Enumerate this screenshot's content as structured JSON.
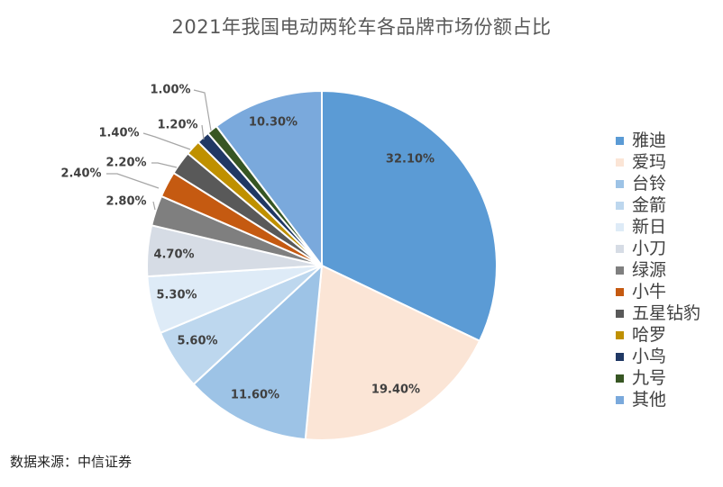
{
  "chart_data": {
    "type": "pie",
    "title": "2021年我国电动两轮车各品牌市场份额占比",
    "categories": [
      "雅迪",
      "爱玛",
      "台铃",
      "金箭",
      "新日",
      "小刀",
      "绿源",
      "小牛",
      "五星钻豹",
      "哈罗",
      "小鸟",
      "九号",
      "其他"
    ],
    "values": [
      32.1,
      19.4,
      11.6,
      5.6,
      5.3,
      4.7,
      2.8,
      2.4,
      2.2,
      1.4,
      1.2,
      1.0,
      10.3
    ],
    "value_labels": [
      "32.10%",
      "19.40%",
      "11.60%",
      "5.60%",
      "5.30%",
      "4.70%",
      "2.80%",
      "2.40%",
      "2.20%",
      "1.40%",
      "1.20%",
      "1.00%",
      "10.30%"
    ],
    "colors": [
      "#5b9bd5",
      "#fbe5d6",
      "#9dc3e6",
      "#bdd7ee",
      "#deebf7",
      "#d6dce5",
      "#7f7f7f",
      "#c55a11",
      "#595959",
      "#bf9000",
      "#203864",
      "#375623",
      "#7aa9dc"
    ],
    "legend_position": "right",
    "start_angle": "top, clockwise"
  },
  "source_note": "数据来源：中信证券"
}
